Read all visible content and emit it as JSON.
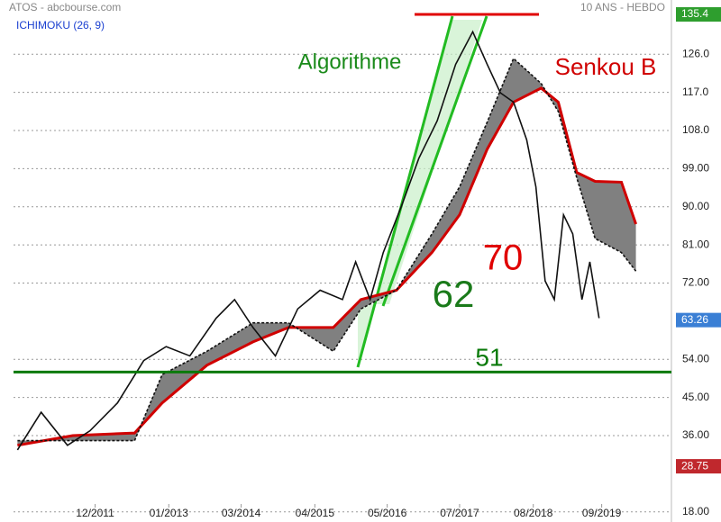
{
  "chart_data": {
    "type": "line",
    "title": "ATOS - abcbourse.com",
    "subtitle": "10 ANS - HEBDO",
    "indicator": "ICHIMOKU (26, 9)",
    "xlim": [
      0,
      500
    ],
    "xticks": [
      {
        "value": 62,
        "label": "12/2011"
      },
      {
        "value": 118,
        "label": "01/2013"
      },
      {
        "value": 173,
        "label": "03/2014"
      },
      {
        "value": 229,
        "label": "04/2015"
      },
      {
        "value": 284,
        "label": "05/2016"
      },
      {
        "value": 339,
        "label": "07/2017"
      },
      {
        "value": 395,
        "label": "08/2018"
      },
      {
        "value": 447,
        "label": "09/2019"
      }
    ],
    "ylim": [
      15.6,
      138.8
    ],
    "yticks": [
      {
        "value": 18,
        "label": "18.00"
      },
      {
        "value": 36,
        "label": "36.00"
      },
      {
        "value": 45,
        "label": "45.00"
      },
      {
        "value": 54,
        "label": "54.00"
      },
      {
        "value": 72,
        "label": "72.00"
      },
      {
        "value": 81,
        "label": "81.00"
      },
      {
        "value": 90,
        "label": "90.00"
      },
      {
        "value": 99,
        "label": "99.00"
      },
      {
        "value": 108,
        "label": "108.0"
      },
      {
        "value": 117,
        "label": "117.0"
      },
      {
        "value": 126,
        "label": "126.0"
      }
    ],
    "grid": true,
    "series": [
      {
        "color": "#111111",
        "x": [
          3,
          21,
          41,
          58,
          79,
          99,
          116,
          134,
          154,
          168,
          182,
          199,
          216,
          233,
          250,
          260,
          271,
          281,
          295,
          308,
          322,
          336,
          349,
          360,
          370,
          380,
          390,
          397,
          404,
          411,
          418,
          425,
          432,
          438,
          445
        ],
        "values": [
          32.6,
          41.5,
          33.7,
          37.1,
          43.7,
          53.7,
          57.0,
          54.8,
          63.7,
          68.1,
          61.5,
          54.8,
          65.9,
          70.3,
          68.1,
          77.0,
          68.1,
          79.2,
          90.3,
          101.4,
          110.3,
          123.6,
          131.3,
          123.6,
          116.9,
          114.7,
          105.8,
          94.7,
          72.5,
          68.1,
          88.1,
          83.6,
          68.1,
          77.0,
          63.7
        ]
      },
      {
        "color": "#111111",
        "dashed": true,
        "x": [
          3,
          45,
          92,
          113,
          147,
          182,
          209,
          243,
          264,
          291,
          318,
          339,
          360,
          380,
          401,
          414,
          428,
          442,
          462,
          473
        ],
        "values": [
          34.8,
          34.8,
          34.8,
          50.4,
          55.9,
          62.6,
          62.6,
          55.9,
          65.9,
          70.3,
          83.6,
          94.7,
          110,
          125,
          119.1,
          112.5,
          96.9,
          82.5,
          79.2,
          74.8
        ]
      },
      {
        "name": "Senkou B",
        "color": "#d00000",
        "x": [
          3,
          45,
          92,
          113,
          147,
          182,
          209,
          243,
          264,
          291,
          318,
          339,
          360,
          380,
          401,
          414,
          428,
          442,
          462,
          473
        ],
        "values": [
          33.7,
          36,
          36.6,
          43.7,
          52.6,
          58.1,
          61.5,
          61.5,
          68.1,
          70.3,
          79.2,
          88.1,
          103.6,
          114.7,
          118,
          114.7,
          98.1,
          96,
          95.8,
          85.9
        ]
      }
    ],
    "cloud_fill": "#808080",
    "levels": [
      {
        "value": 51,
        "label": "51",
        "color": "#0a7a0a"
      },
      {
        "value": 135.4,
        "color": "#e00000"
      }
    ],
    "badges": [
      {
        "value": 135.4,
        "color": "#2e9e2e"
      },
      {
        "value": 63.26,
        "color": "#3a7fd5"
      },
      {
        "value": 28.75,
        "color": "#c0282d"
      }
    ],
    "annotations": [
      {
        "text": "Algorithme",
        "color": "#1a8a1a"
      },
      {
        "text": "62",
        "color": "#1a7a1a"
      },
      {
        "text": "70",
        "color": "#e00000"
      }
    ]
  }
}
